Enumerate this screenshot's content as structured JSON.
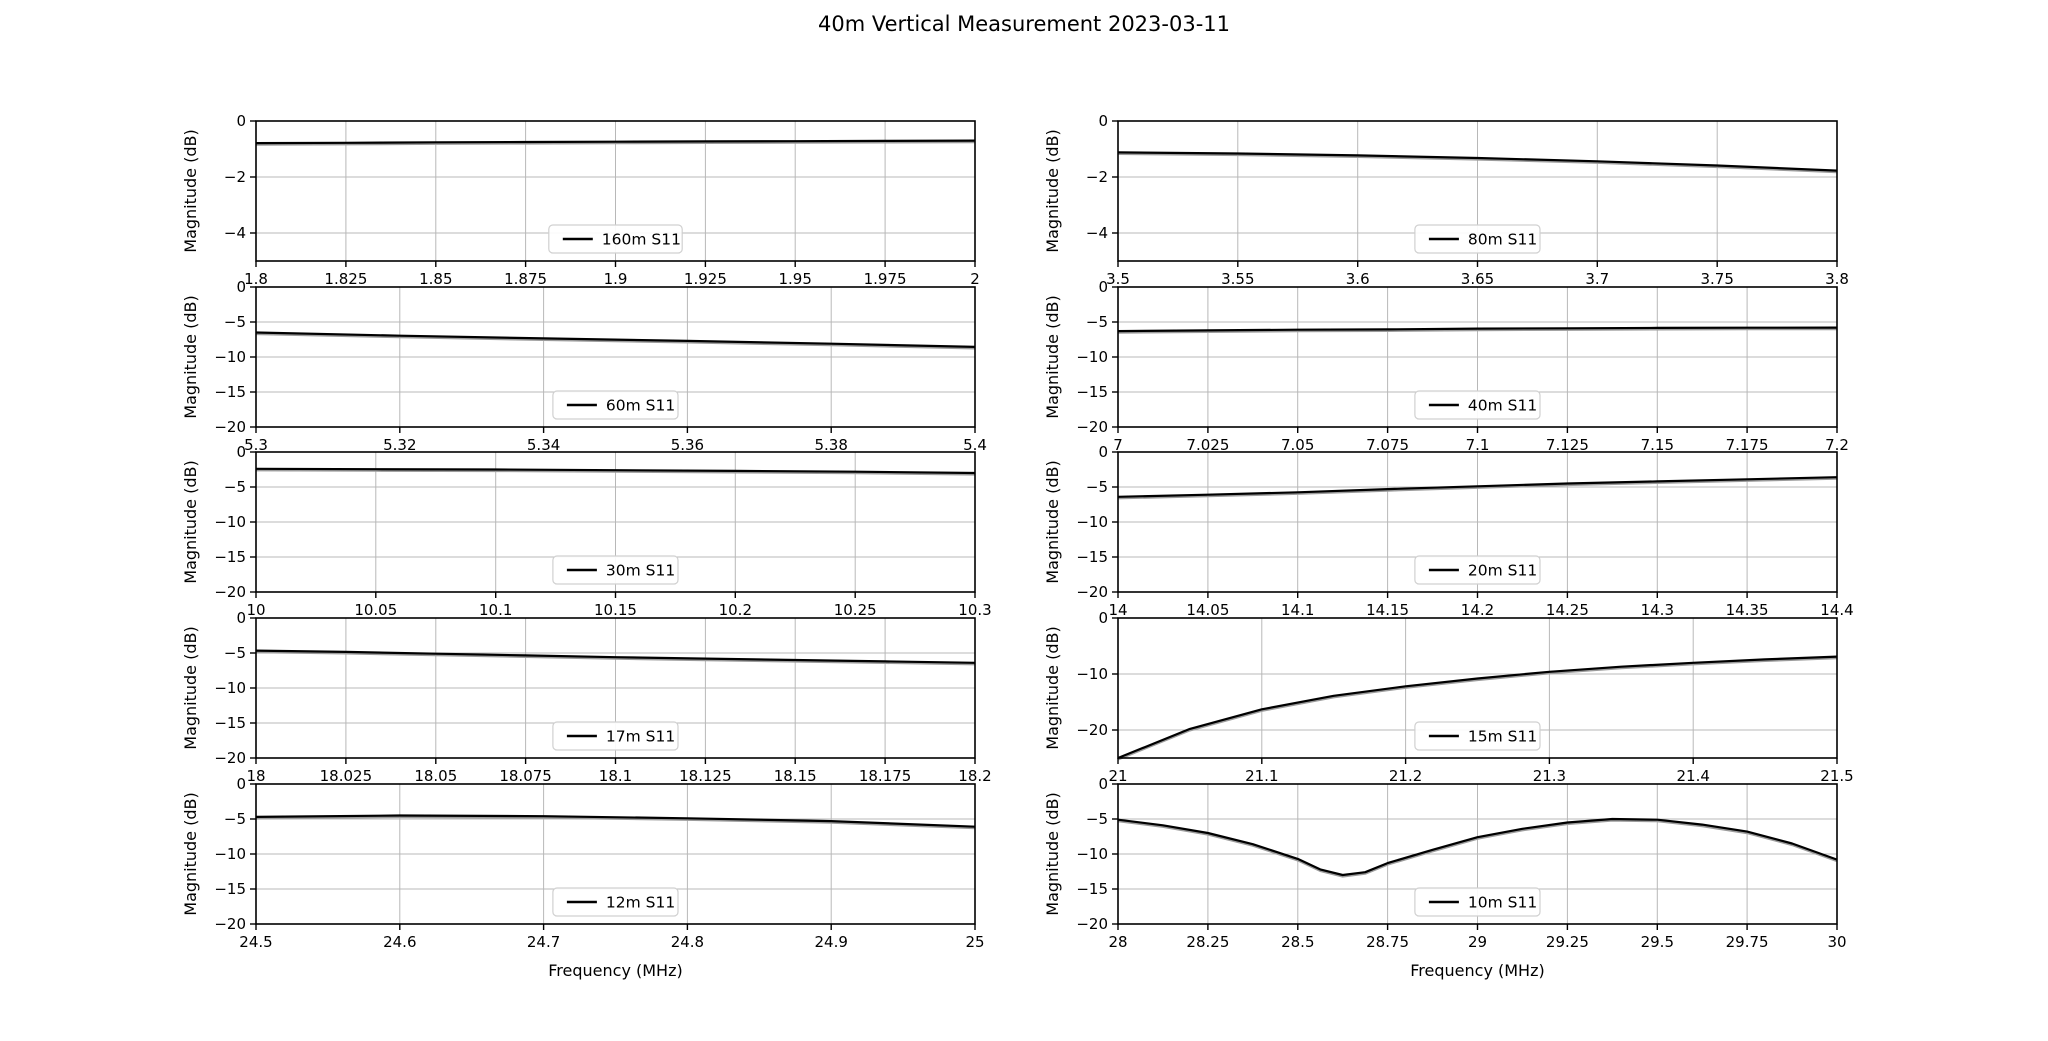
{
  "figure": {
    "title": "40m Vertical Measurement 2023-03-11",
    "background": "#ffffff",
    "line_color": "#000000",
    "ghost_line_color": "#9c9c9c",
    "grid_color": "#b8b8b8",
    "spine_color": "#000000",
    "legend_border_color": "#d0d0d0",
    "legend_background": "#ffffff",
    "xlabel": "Frequency (MHz)",
    "ylabel": "Magnitude (dB)"
  },
  "chart_data": [
    {
      "type": "line",
      "band": "160m",
      "legend": "160m S11",
      "row": 0,
      "col": 0,
      "ylabel": "Magnitude (dB)",
      "xlabel": "",
      "grid": true,
      "legend_loc": "lower center",
      "xlim": [
        1.8,
        2.0
      ],
      "ylim": [
        -5,
        0
      ],
      "x_ticks": [
        1.8,
        1.825,
        1.85,
        1.875,
        1.9,
        1.925,
        1.95,
        1.975,
        2.0
      ],
      "x_tick_labels": [
        "1.8",
        "1.825",
        "1.85",
        "1.875",
        "1.9",
        "1.925",
        "1.95",
        "1.975",
        "2"
      ],
      "y_ticks": [
        0,
        -2,
        -4
      ],
      "y_tick_labels": [
        "0",
        "−2",
        "−4"
      ],
      "x": [
        1.8,
        1.825,
        1.85,
        1.875,
        1.9,
        1.925,
        1.95,
        1.975,
        2.0
      ],
      "y": [
        -0.79,
        -0.78,
        -0.76,
        -0.75,
        -0.74,
        -0.73,
        -0.72,
        -0.71,
        -0.7
      ]
    },
    {
      "type": "line",
      "band": "80m",
      "legend": "80m S11",
      "row": 0,
      "col": 1,
      "ylabel": "Magnitude (dB)",
      "xlabel": "",
      "grid": true,
      "legend_loc": "lower center",
      "xlim": [
        3.5,
        3.8
      ],
      "ylim": [
        -5,
        0
      ],
      "x_ticks": [
        3.5,
        3.55,
        3.6,
        3.65,
        3.7,
        3.75,
        3.8
      ],
      "x_tick_labels": [
        "3.5",
        "3.55",
        "3.6",
        "3.65",
        "3.7",
        "3.75",
        "3.8"
      ],
      "y_ticks": [
        0,
        -2,
        -4
      ],
      "y_tick_labels": [
        "0",
        "−2",
        "−4"
      ],
      "x": [
        3.5,
        3.55,
        3.6,
        3.65,
        3.7,
        3.75,
        3.8
      ],
      "y": [
        -1.12,
        -1.16,
        -1.23,
        -1.32,
        -1.44,
        -1.59,
        -1.77
      ]
    },
    {
      "type": "line",
      "band": "60m",
      "legend": "60m S11",
      "row": 1,
      "col": 0,
      "ylabel": "Magnitude (dB)",
      "xlabel": "",
      "grid": true,
      "legend_loc": "lower center",
      "xlim": [
        5.3,
        5.4
      ],
      "ylim": [
        -20,
        0
      ],
      "x_ticks": [
        5.3,
        5.32,
        5.34,
        5.36,
        5.38,
        5.4
      ],
      "x_tick_labels": [
        "5.3",
        "5.32",
        "5.34",
        "5.36",
        "5.38",
        "5.4"
      ],
      "y_ticks": [
        0,
        -5,
        -10,
        -15,
        -20
      ],
      "y_tick_labels": [
        "0",
        "−5",
        "−10",
        "−15",
        "−20"
      ],
      "x": [
        5.3,
        5.32,
        5.34,
        5.36,
        5.38,
        5.4
      ],
      "y": [
        -6.5,
        -6.95,
        -7.35,
        -7.7,
        -8.1,
        -8.55
      ]
    },
    {
      "type": "line",
      "band": "40m",
      "legend": "40m S11",
      "row": 1,
      "col": 1,
      "ylabel": "Magnitude (dB)",
      "xlabel": "",
      "grid": true,
      "legend_loc": "lower center",
      "xlim": [
        7.0,
        7.2
      ],
      "ylim": [
        -20,
        0
      ],
      "x_ticks": [
        7.0,
        7.025,
        7.05,
        7.075,
        7.1,
        7.125,
        7.15,
        7.175,
        7.2
      ],
      "x_tick_labels": [
        "7",
        "7.025",
        "7.05",
        "7.075",
        "7.1",
        "7.125",
        "7.15",
        "7.175",
        "7.2"
      ],
      "y_ticks": [
        0,
        -5,
        -10,
        -15,
        -20
      ],
      "y_tick_labels": [
        "0",
        "−5",
        "−10",
        "−15",
        "−20"
      ],
      "x": [
        7.0,
        7.025,
        7.05,
        7.075,
        7.1,
        7.125,
        7.15,
        7.175,
        7.2
      ],
      "y": [
        -6.3,
        -6.2,
        -6.1,
        -6.05,
        -5.95,
        -5.9,
        -5.85,
        -5.82,
        -5.8
      ]
    },
    {
      "type": "line",
      "band": "30m",
      "legend": "30m S11",
      "row": 2,
      "col": 0,
      "ylabel": "Magnitude (dB)",
      "xlabel": "",
      "grid": true,
      "legend_loc": "lower center",
      "xlim": [
        10.0,
        10.3
      ],
      "ylim": [
        -20,
        0
      ],
      "x_ticks": [
        10.0,
        10.05,
        10.1,
        10.15,
        10.2,
        10.25,
        10.3
      ],
      "x_tick_labels": [
        "10",
        "10.05",
        "10.1",
        "10.15",
        "10.2",
        "10.25",
        "10.3"
      ],
      "y_ticks": [
        0,
        -5,
        -10,
        -15,
        -20
      ],
      "y_tick_labels": [
        "0",
        "−5",
        "−10",
        "−15",
        "−20"
      ],
      "x": [
        10.0,
        10.05,
        10.1,
        10.15,
        10.2,
        10.25,
        10.3
      ],
      "y": [
        -2.4,
        -2.45,
        -2.5,
        -2.6,
        -2.7,
        -2.82,
        -3.0
      ]
    },
    {
      "type": "line",
      "band": "20m",
      "legend": "20m S11",
      "row": 2,
      "col": 1,
      "ylabel": "Magnitude (dB)",
      "xlabel": "",
      "grid": true,
      "legend_loc": "lower center",
      "xlim": [
        14.0,
        14.4
      ],
      "ylim": [
        -20,
        0
      ],
      "x_ticks": [
        14.0,
        14.05,
        14.1,
        14.15,
        14.2,
        14.25,
        14.3,
        14.35,
        14.4
      ],
      "x_tick_labels": [
        "14",
        "14.05",
        "14.1",
        "14.15",
        "14.2",
        "14.25",
        "14.3",
        "14.35",
        "14.4"
      ],
      "y_ticks": [
        0,
        -5,
        -10,
        -15,
        -20
      ],
      "y_tick_labels": [
        "0",
        "−5",
        "−10",
        "−15",
        "−20"
      ],
      "x": [
        14.0,
        14.05,
        14.1,
        14.15,
        14.2,
        14.25,
        14.3,
        14.35,
        14.4
      ],
      "y": [
        -6.4,
        -6.1,
        -5.75,
        -5.3,
        -4.9,
        -4.5,
        -4.2,
        -3.9,
        -3.6
      ]
    },
    {
      "type": "line",
      "band": "17m",
      "legend": "17m S11",
      "row": 3,
      "col": 0,
      "ylabel": "Magnitude (dB)",
      "xlabel": "",
      "grid": true,
      "legend_loc": "lower center",
      "xlim": [
        18.0,
        18.2
      ],
      "ylim": [
        -20,
        0
      ],
      "x_ticks": [
        18.0,
        18.025,
        18.05,
        18.075,
        18.1,
        18.125,
        18.15,
        18.175,
        18.2
      ],
      "x_tick_labels": [
        "18",
        "18.025",
        "18.05",
        "18.075",
        "18.1",
        "18.125",
        "18.15",
        "18.175",
        "18.2"
      ],
      "y_ticks": [
        0,
        -5,
        -10,
        -15,
        -20
      ],
      "y_tick_labels": [
        "0",
        "−5",
        "−10",
        "−15",
        "−20"
      ],
      "x": [
        18.0,
        18.025,
        18.05,
        18.075,
        18.1,
        18.125,
        18.15,
        18.175,
        18.2
      ],
      "y": [
        -4.65,
        -4.85,
        -5.1,
        -5.35,
        -5.6,
        -5.8,
        -6.0,
        -6.2,
        -6.4
      ]
    },
    {
      "type": "line",
      "band": "15m",
      "legend": "15m S11",
      "row": 3,
      "col": 1,
      "ylabel": "Magnitude (dB)",
      "xlabel": "",
      "grid": true,
      "legend_loc": "lower center",
      "xlim": [
        21.0,
        21.5
      ],
      "ylim": [
        -25,
        0
      ],
      "x_ticks": [
        21.0,
        21.1,
        21.2,
        21.3,
        21.4,
        21.5
      ],
      "x_tick_labels": [
        "21",
        "21.1",
        "21.2",
        "21.3",
        "21.4",
        "21.5"
      ],
      "y_ticks": [
        0,
        -10,
        -20
      ],
      "y_tick_labels": [
        "0",
        "−10",
        "−20"
      ],
      "x": [
        21.0,
        21.05,
        21.1,
        21.15,
        21.2,
        21.25,
        21.3,
        21.35,
        21.4,
        21.45,
        21.5
      ],
      "y": [
        -25.0,
        -19.8,
        -16.3,
        -13.9,
        -12.2,
        -10.8,
        -9.6,
        -8.7,
        -8.0,
        -7.4,
        -6.9
      ]
    },
    {
      "type": "line",
      "band": "12m",
      "legend": "12m S11",
      "row": 4,
      "col": 0,
      "ylabel": "Magnitude (dB)",
      "xlabel": "Frequency (MHz)",
      "grid": true,
      "legend_loc": "lower center",
      "xlim": [
        24.5,
        25.0
      ],
      "ylim": [
        -20,
        0
      ],
      "x_ticks": [
        24.5,
        24.6,
        24.7,
        24.8,
        24.9,
        25.0
      ],
      "x_tick_labels": [
        "24.5",
        "24.6",
        "24.7",
        "24.8",
        "24.9",
        "25"
      ],
      "y_ticks": [
        0,
        -5,
        -10,
        -15,
        -20
      ],
      "y_tick_labels": [
        "0",
        "−5",
        "−10",
        "−15",
        "−20"
      ],
      "x": [
        24.5,
        24.6,
        24.7,
        24.8,
        24.9,
        25.0
      ],
      "y": [
        -4.7,
        -4.5,
        -4.6,
        -4.9,
        -5.3,
        -6.1
      ]
    },
    {
      "type": "line",
      "band": "10m",
      "legend": "10m S11",
      "row": 4,
      "col": 1,
      "ylabel": "Magnitude (dB)",
      "xlabel": "Frequency (MHz)",
      "grid": true,
      "legend_loc": "lower center",
      "xlim": [
        28.0,
        30.0
      ],
      "ylim": [
        -20,
        0
      ],
      "x_ticks": [
        28.0,
        28.25,
        28.5,
        28.75,
        29.0,
        29.25,
        29.5,
        29.75,
        30.0
      ],
      "x_tick_labels": [
        "28",
        "28.25",
        "28.5",
        "28.75",
        "29",
        "29.25",
        "29.5",
        "29.75",
        "30"
      ],
      "y_ticks": [
        0,
        -5,
        -10,
        -15,
        -20
      ],
      "y_tick_labels": [
        "0",
        "−5",
        "−10",
        "−15",
        "−20"
      ],
      "x": [
        28.0,
        28.125,
        28.25,
        28.375,
        28.5,
        28.5625,
        28.625,
        28.6875,
        28.75,
        28.875,
        29.0,
        29.125,
        29.25,
        29.375,
        29.5,
        29.625,
        29.75,
        29.875,
        30.0
      ],
      "y": [
        -5.1,
        -5.9,
        -7.0,
        -8.6,
        -10.7,
        -12.2,
        -13.0,
        -12.6,
        -11.3,
        -9.4,
        -7.6,
        -6.4,
        -5.5,
        -5.0,
        -5.1,
        -5.8,
        -6.8,
        -8.5,
        -10.8
      ]
    }
  ]
}
